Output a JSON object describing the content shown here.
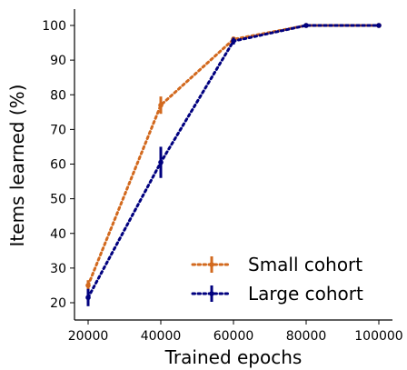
{
  "chart_data": {
    "type": "line",
    "title": "",
    "xlabel": "Trained epochs",
    "ylabel": "Items learned (%)",
    "x": [
      20000,
      40000,
      60000,
      80000,
      100000
    ],
    "xticks": [
      "20000",
      "40000",
      "60000",
      "80000",
      "100000"
    ],
    "yticks": [
      "20",
      "30",
      "40",
      "50",
      "60",
      "70",
      "80",
      "90",
      "100"
    ],
    "xlim": [
      20000,
      100000
    ],
    "ylim": [
      20,
      100
    ],
    "grid": false,
    "legend_position": "bottom-right",
    "line_style": "dotted",
    "series": [
      {
        "name": "Small cohort",
        "color": "#d2691e",
        "values": [
          25,
          77,
          96,
          100,
          100
        ],
        "errors": [
          1.5,
          2.5,
          0.8,
          0.3,
          0.2
        ]
      },
      {
        "name": "Large cohort",
        "color": "#00007f",
        "values": [
          21.5,
          60.5,
          95.5,
          100,
          100
        ],
        "errors": [
          2.5,
          4.5,
          1.0,
          0.3,
          0.2
        ]
      }
    ]
  }
}
